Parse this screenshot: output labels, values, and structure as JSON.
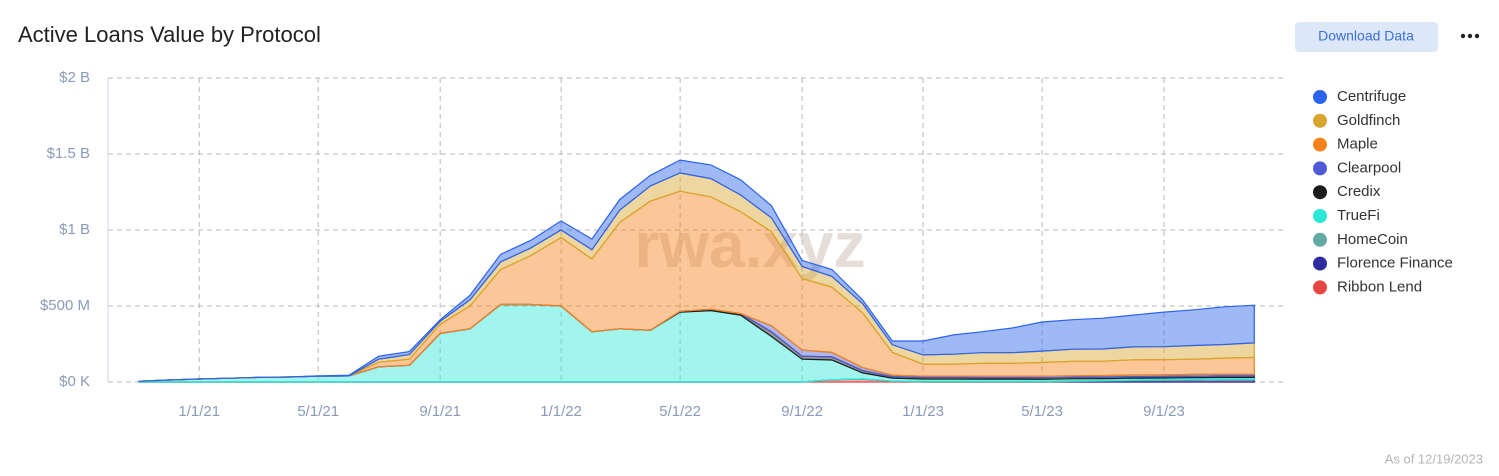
{
  "chart_data": {
    "type": "stacked_area",
    "title": "Active Loans Value by Protocol",
    "button": "Download Data",
    "footnote": "As of 12/19/2023",
    "watermark": "rwa.xyz",
    "x": [
      "11/1/20",
      "12/1/20",
      "1/1/21",
      "2/1/21",
      "3/1/21",
      "4/1/21",
      "5/1/21",
      "6/1/21",
      "7/1/21",
      "8/1/21",
      "9/1/21",
      "10/1/21",
      "11/1/21",
      "12/1/21",
      "1/1/22",
      "2/1/22",
      "3/1/22",
      "4/1/22",
      "5/1/22",
      "6/1/22",
      "7/1/22",
      "8/1/22",
      "9/1/22",
      "10/1/22",
      "11/1/22",
      "12/1/22",
      "1/1/23",
      "2/1/23",
      "3/1/23",
      "4/1/23",
      "5/1/23",
      "6/1/23",
      "7/1/23",
      "8/1/23",
      "9/1/23",
      "10/1/23",
      "11/1/23",
      "12/1/23"
    ],
    "xlim": [
      "10/1/20",
      "1/1/24"
    ],
    "xticks": [
      "1/1/21",
      "5/1/21",
      "9/1/21",
      "1/1/22",
      "5/1/22",
      "9/1/22",
      "1/1/23",
      "5/1/23",
      "9/1/23"
    ],
    "ylim": [
      0,
      2000
    ],
    "yticks": [
      {
        "value": 0,
        "label": "$0 K"
      },
      {
        "value": 500,
        "label": "$500 M"
      },
      {
        "value": 1000,
        "label": "$1 B"
      },
      {
        "value": 1500,
        "label": "$1.5 B"
      },
      {
        "value": 2000,
        "label": "$2 B"
      }
    ],
    "grid": true,
    "legend": "right",
    "series": [
      {
        "name": "Centrifuge",
        "color": "#2b63ee",
        "values": [
          0,
          0,
          0,
          0,
          0,
          0,
          2,
          5,
          20,
          20,
          10,
          30,
          50,
          50,
          60,
          70,
          70,
          70,
          85,
          90,
          100,
          80,
          40,
          45,
          25,
          25,
          92,
          127,
          137,
          162,
          192,
          194,
          203,
          209,
          228,
          235,
          248,
          248
        ]
      },
      {
        "name": "Goldfinch",
        "color": "#d9a52c",
        "values": [
          0,
          0,
          0,
          0,
          0,
          0,
          0,
          0,
          20,
          30,
          20,
          40,
          50,
          50,
          50,
          60,
          80,
          100,
          120,
          120,
          110,
          90,
          80,
          70,
          60,
          50,
          60,
          65,
          70,
          70,
          75,
          80,
          80,
          85,
          85,
          90,
          90,
          95
        ]
      },
      {
        "name": "Maple",
        "color": "#f7821b",
        "values": [
          0,
          0,
          0,
          0,
          0,
          0,
          0,
          0,
          30,
          40,
          60,
          150,
          230,
          320,
          450,
          480,
          700,
          850,
          790,
          740,
          670,
          620,
          470,
          430,
          360,
          150,
          80,
          80,
          85,
          85,
          90,
          95,
          95,
          100,
          100,
          100,
          105,
          110
        ]
      },
      {
        "name": "Clearpool",
        "color": "#4f5bd5",
        "values": [
          0,
          0,
          0,
          0,
          0,
          0,
          0,
          0,
          0,
          0,
          0,
          0,
          0,
          0,
          0,
          0,
          0,
          0,
          0,
          0,
          0,
          40,
          40,
          30,
          20,
          10,
          8,
          8,
          9,
          9,
          10,
          10,
          10,
          11,
          11,
          12,
          12,
          12
        ]
      },
      {
        "name": "Credix",
        "color": "#1c1c1c",
        "values": [
          0,
          0,
          0,
          0,
          0,
          0,
          0,
          0,
          0,
          0,
          0,
          0,
          0,
          0,
          0,
          0,
          0,
          0,
          5,
          8,
          10,
          30,
          20,
          20,
          15,
          10,
          10,
          10,
          10,
          10,
          10,
          10,
          10,
          10,
          10,
          10,
          10,
          10
        ]
      },
      {
        "name": "TrueFi",
        "color": "#2ee8d6",
        "values": [
          5,
          13,
          20,
          25,
          30,
          33,
          38,
          40,
          100,
          110,
          320,
          350,
          510,
          510,
          500,
          330,
          350,
          340,
          460,
          470,
          440,
          300,
          150,
          130,
          40,
          20,
          15,
          15,
          14,
          14,
          13,
          13,
          12,
          12,
          11,
          11,
          10,
          10
        ]
      },
      {
        "name": "HomeCoin",
        "color": "#63aba2",
        "values": [
          0,
          0,
          0,
          0,
          0,
          0,
          0,
          0,
          0,
          0,
          0,
          0,
          0,
          0,
          0,
          0,
          0,
          0,
          0,
          0,
          0,
          0,
          0,
          0,
          0,
          0,
          5,
          5,
          5,
          5,
          5,
          5,
          5,
          5,
          5,
          5,
          5,
          5
        ]
      },
      {
        "name": "Florence Finance",
        "color": "#2c2c9c",
        "values": [
          0,
          0,
          0,
          0,
          0,
          0,
          0,
          0,
          0,
          0,
          0,
          0,
          0,
          0,
          0,
          0,
          0,
          0,
          0,
          0,
          0,
          0,
          0,
          0,
          0,
          0,
          0,
          0,
          0,
          0,
          0,
          3,
          5,
          8,
          10,
          12,
          15,
          15
        ]
      },
      {
        "name": "Ribbon Lend",
        "color": "#e84545",
        "values": [
          0,
          0,
          0,
          0,
          0,
          0,
          0,
          0,
          0,
          0,
          0,
          0,
          0,
          0,
          0,
          0,
          0,
          0,
          0,
          0,
          0,
          0,
          0,
          15,
          20,
          5,
          0,
          0,
          0,
          0,
          0,
          0,
          0,
          0,
          0,
          0,
          0,
          0
        ]
      }
    ]
  }
}
